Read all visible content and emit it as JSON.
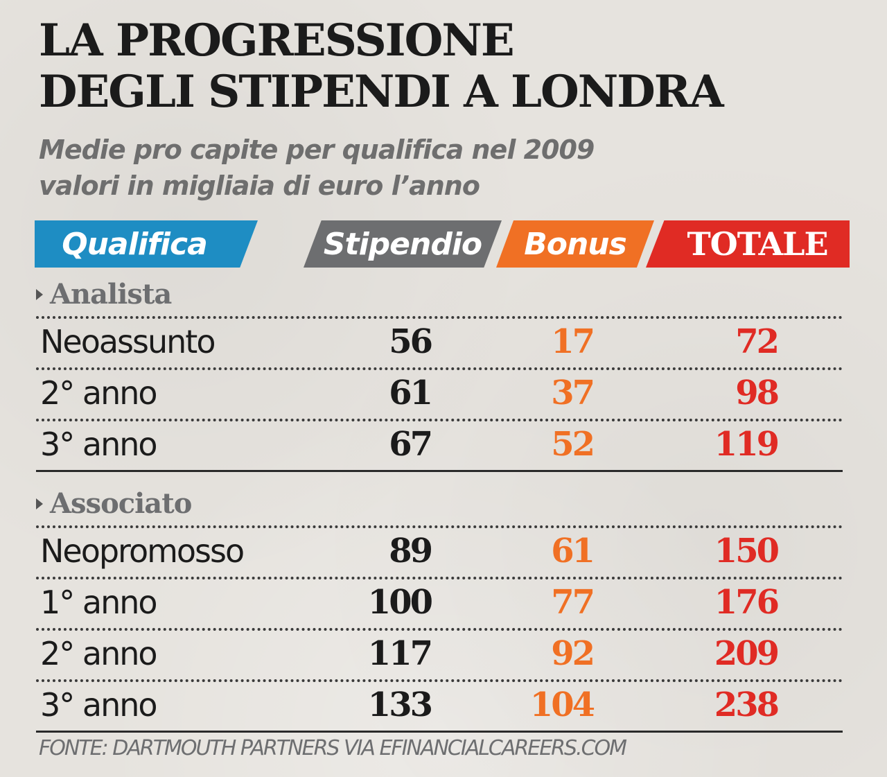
{
  "title_lines": [
    "LA PROGRESSIONE",
    "DEGLI STIPENDI A LONDRA"
  ],
  "subtitle_lines": [
    "Medie pro capite per qualifica nel 2009",
    "valori in migliaia di euro l’anno"
  ],
  "headers": {
    "qualifica": "Qualifica",
    "stipendio": "Stipendio",
    "bonus": "Bonus",
    "totale": "TOTALE"
  },
  "colors": {
    "qualifica": "#1e8dc3",
    "stipendio": "#6d6e70",
    "bonus": "#f07024",
    "totale": "#e02b24"
  },
  "source": "FONTE: DARTMOUTH PARTNERS VIA EFINANCIALCAREERS.COM",
  "chart_data": {
    "type": "table",
    "title": "LA PROGRESSIONE DEGLI STIPENDI A LONDRA",
    "subtitle": "Medie pro capite per qualifica nel 2009 valori in migliaia di euro l’anno",
    "columns": [
      "Qualifica",
      "Stipendio",
      "Bonus",
      "TOTALE"
    ],
    "groups": [
      {
        "name": "Analista",
        "rows": [
          {
            "label": "Neoassunto",
            "stipendio": 56,
            "bonus": 17,
            "totale": 72
          },
          {
            "label": "2° anno",
            "stipendio": 61,
            "bonus": 37,
            "totale": 98
          },
          {
            "label": "3° anno",
            "stipendio": 67,
            "bonus": 52,
            "totale": 119
          }
        ]
      },
      {
        "name": "Associato",
        "rows": [
          {
            "label": "Neopromosso",
            "stipendio": 89,
            "bonus": 61,
            "totale": 150
          },
          {
            "label": "1° anno",
            "stipendio": 100,
            "bonus": 77,
            "totale": 176
          },
          {
            "label": "2° anno",
            "stipendio": 117,
            "bonus": 92,
            "totale": 209
          },
          {
            "label": "3° anno",
            "stipendio": 133,
            "bonus": 104,
            "totale": 238
          }
        ]
      }
    ],
    "source": "FONTE: DARTMOUTH PARTNERS VIA EFINANCIALCAREERS.COM"
  }
}
